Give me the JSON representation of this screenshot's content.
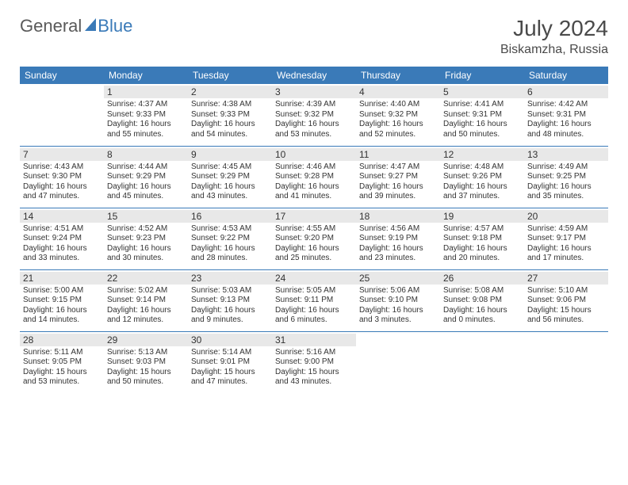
{
  "logo": {
    "general": "General",
    "blue": "Blue"
  },
  "title": "July 2024",
  "location": "Biskamzha, Russia",
  "header_bg": "#3a7ab8",
  "days": [
    "Sunday",
    "Monday",
    "Tuesday",
    "Wednesday",
    "Thursday",
    "Friday",
    "Saturday"
  ],
  "weeks": [
    [
      null,
      {
        "n": "1",
        "sr": "4:37 AM",
        "ss": "9:33 PM",
        "dl": "16 hours and 55 minutes."
      },
      {
        "n": "2",
        "sr": "4:38 AM",
        "ss": "9:33 PM",
        "dl": "16 hours and 54 minutes."
      },
      {
        "n": "3",
        "sr": "4:39 AM",
        "ss": "9:32 PM",
        "dl": "16 hours and 53 minutes."
      },
      {
        "n": "4",
        "sr": "4:40 AM",
        "ss": "9:32 PM",
        "dl": "16 hours and 52 minutes."
      },
      {
        "n": "5",
        "sr": "4:41 AM",
        "ss": "9:31 PM",
        "dl": "16 hours and 50 minutes."
      },
      {
        "n": "6",
        "sr": "4:42 AM",
        "ss": "9:31 PM",
        "dl": "16 hours and 48 minutes."
      }
    ],
    [
      {
        "n": "7",
        "sr": "4:43 AM",
        "ss": "9:30 PM",
        "dl": "16 hours and 47 minutes."
      },
      {
        "n": "8",
        "sr": "4:44 AM",
        "ss": "9:29 PM",
        "dl": "16 hours and 45 minutes."
      },
      {
        "n": "9",
        "sr": "4:45 AM",
        "ss": "9:29 PM",
        "dl": "16 hours and 43 minutes."
      },
      {
        "n": "10",
        "sr": "4:46 AM",
        "ss": "9:28 PM",
        "dl": "16 hours and 41 minutes."
      },
      {
        "n": "11",
        "sr": "4:47 AM",
        "ss": "9:27 PM",
        "dl": "16 hours and 39 minutes."
      },
      {
        "n": "12",
        "sr": "4:48 AM",
        "ss": "9:26 PM",
        "dl": "16 hours and 37 minutes."
      },
      {
        "n": "13",
        "sr": "4:49 AM",
        "ss": "9:25 PM",
        "dl": "16 hours and 35 minutes."
      }
    ],
    [
      {
        "n": "14",
        "sr": "4:51 AM",
        "ss": "9:24 PM",
        "dl": "16 hours and 33 minutes."
      },
      {
        "n": "15",
        "sr": "4:52 AM",
        "ss": "9:23 PM",
        "dl": "16 hours and 30 minutes."
      },
      {
        "n": "16",
        "sr": "4:53 AM",
        "ss": "9:22 PM",
        "dl": "16 hours and 28 minutes."
      },
      {
        "n": "17",
        "sr": "4:55 AM",
        "ss": "9:20 PM",
        "dl": "16 hours and 25 minutes."
      },
      {
        "n": "18",
        "sr": "4:56 AM",
        "ss": "9:19 PM",
        "dl": "16 hours and 23 minutes."
      },
      {
        "n": "19",
        "sr": "4:57 AM",
        "ss": "9:18 PM",
        "dl": "16 hours and 20 minutes."
      },
      {
        "n": "20",
        "sr": "4:59 AM",
        "ss": "9:17 PM",
        "dl": "16 hours and 17 minutes."
      }
    ],
    [
      {
        "n": "21",
        "sr": "5:00 AM",
        "ss": "9:15 PM",
        "dl": "16 hours and 14 minutes."
      },
      {
        "n": "22",
        "sr": "5:02 AM",
        "ss": "9:14 PM",
        "dl": "16 hours and 12 minutes."
      },
      {
        "n": "23",
        "sr": "5:03 AM",
        "ss": "9:13 PM",
        "dl": "16 hours and 9 minutes."
      },
      {
        "n": "24",
        "sr": "5:05 AM",
        "ss": "9:11 PM",
        "dl": "16 hours and 6 minutes."
      },
      {
        "n": "25",
        "sr": "5:06 AM",
        "ss": "9:10 PM",
        "dl": "16 hours and 3 minutes."
      },
      {
        "n": "26",
        "sr": "5:08 AM",
        "ss": "9:08 PM",
        "dl": "16 hours and 0 minutes."
      },
      {
        "n": "27",
        "sr": "5:10 AM",
        "ss": "9:06 PM",
        "dl": "15 hours and 56 minutes."
      }
    ],
    [
      {
        "n": "28",
        "sr": "5:11 AM",
        "ss": "9:05 PM",
        "dl": "15 hours and 53 minutes."
      },
      {
        "n": "29",
        "sr": "5:13 AM",
        "ss": "9:03 PM",
        "dl": "15 hours and 50 minutes."
      },
      {
        "n": "30",
        "sr": "5:14 AM",
        "ss": "9:01 PM",
        "dl": "15 hours and 47 minutes."
      },
      {
        "n": "31",
        "sr": "5:16 AM",
        "ss": "9:00 PM",
        "dl": "15 hours and 43 minutes."
      },
      null,
      null,
      null
    ]
  ],
  "labels": {
    "sunrise": "Sunrise:",
    "sunset": "Sunset:",
    "daylight": "Daylight:"
  }
}
